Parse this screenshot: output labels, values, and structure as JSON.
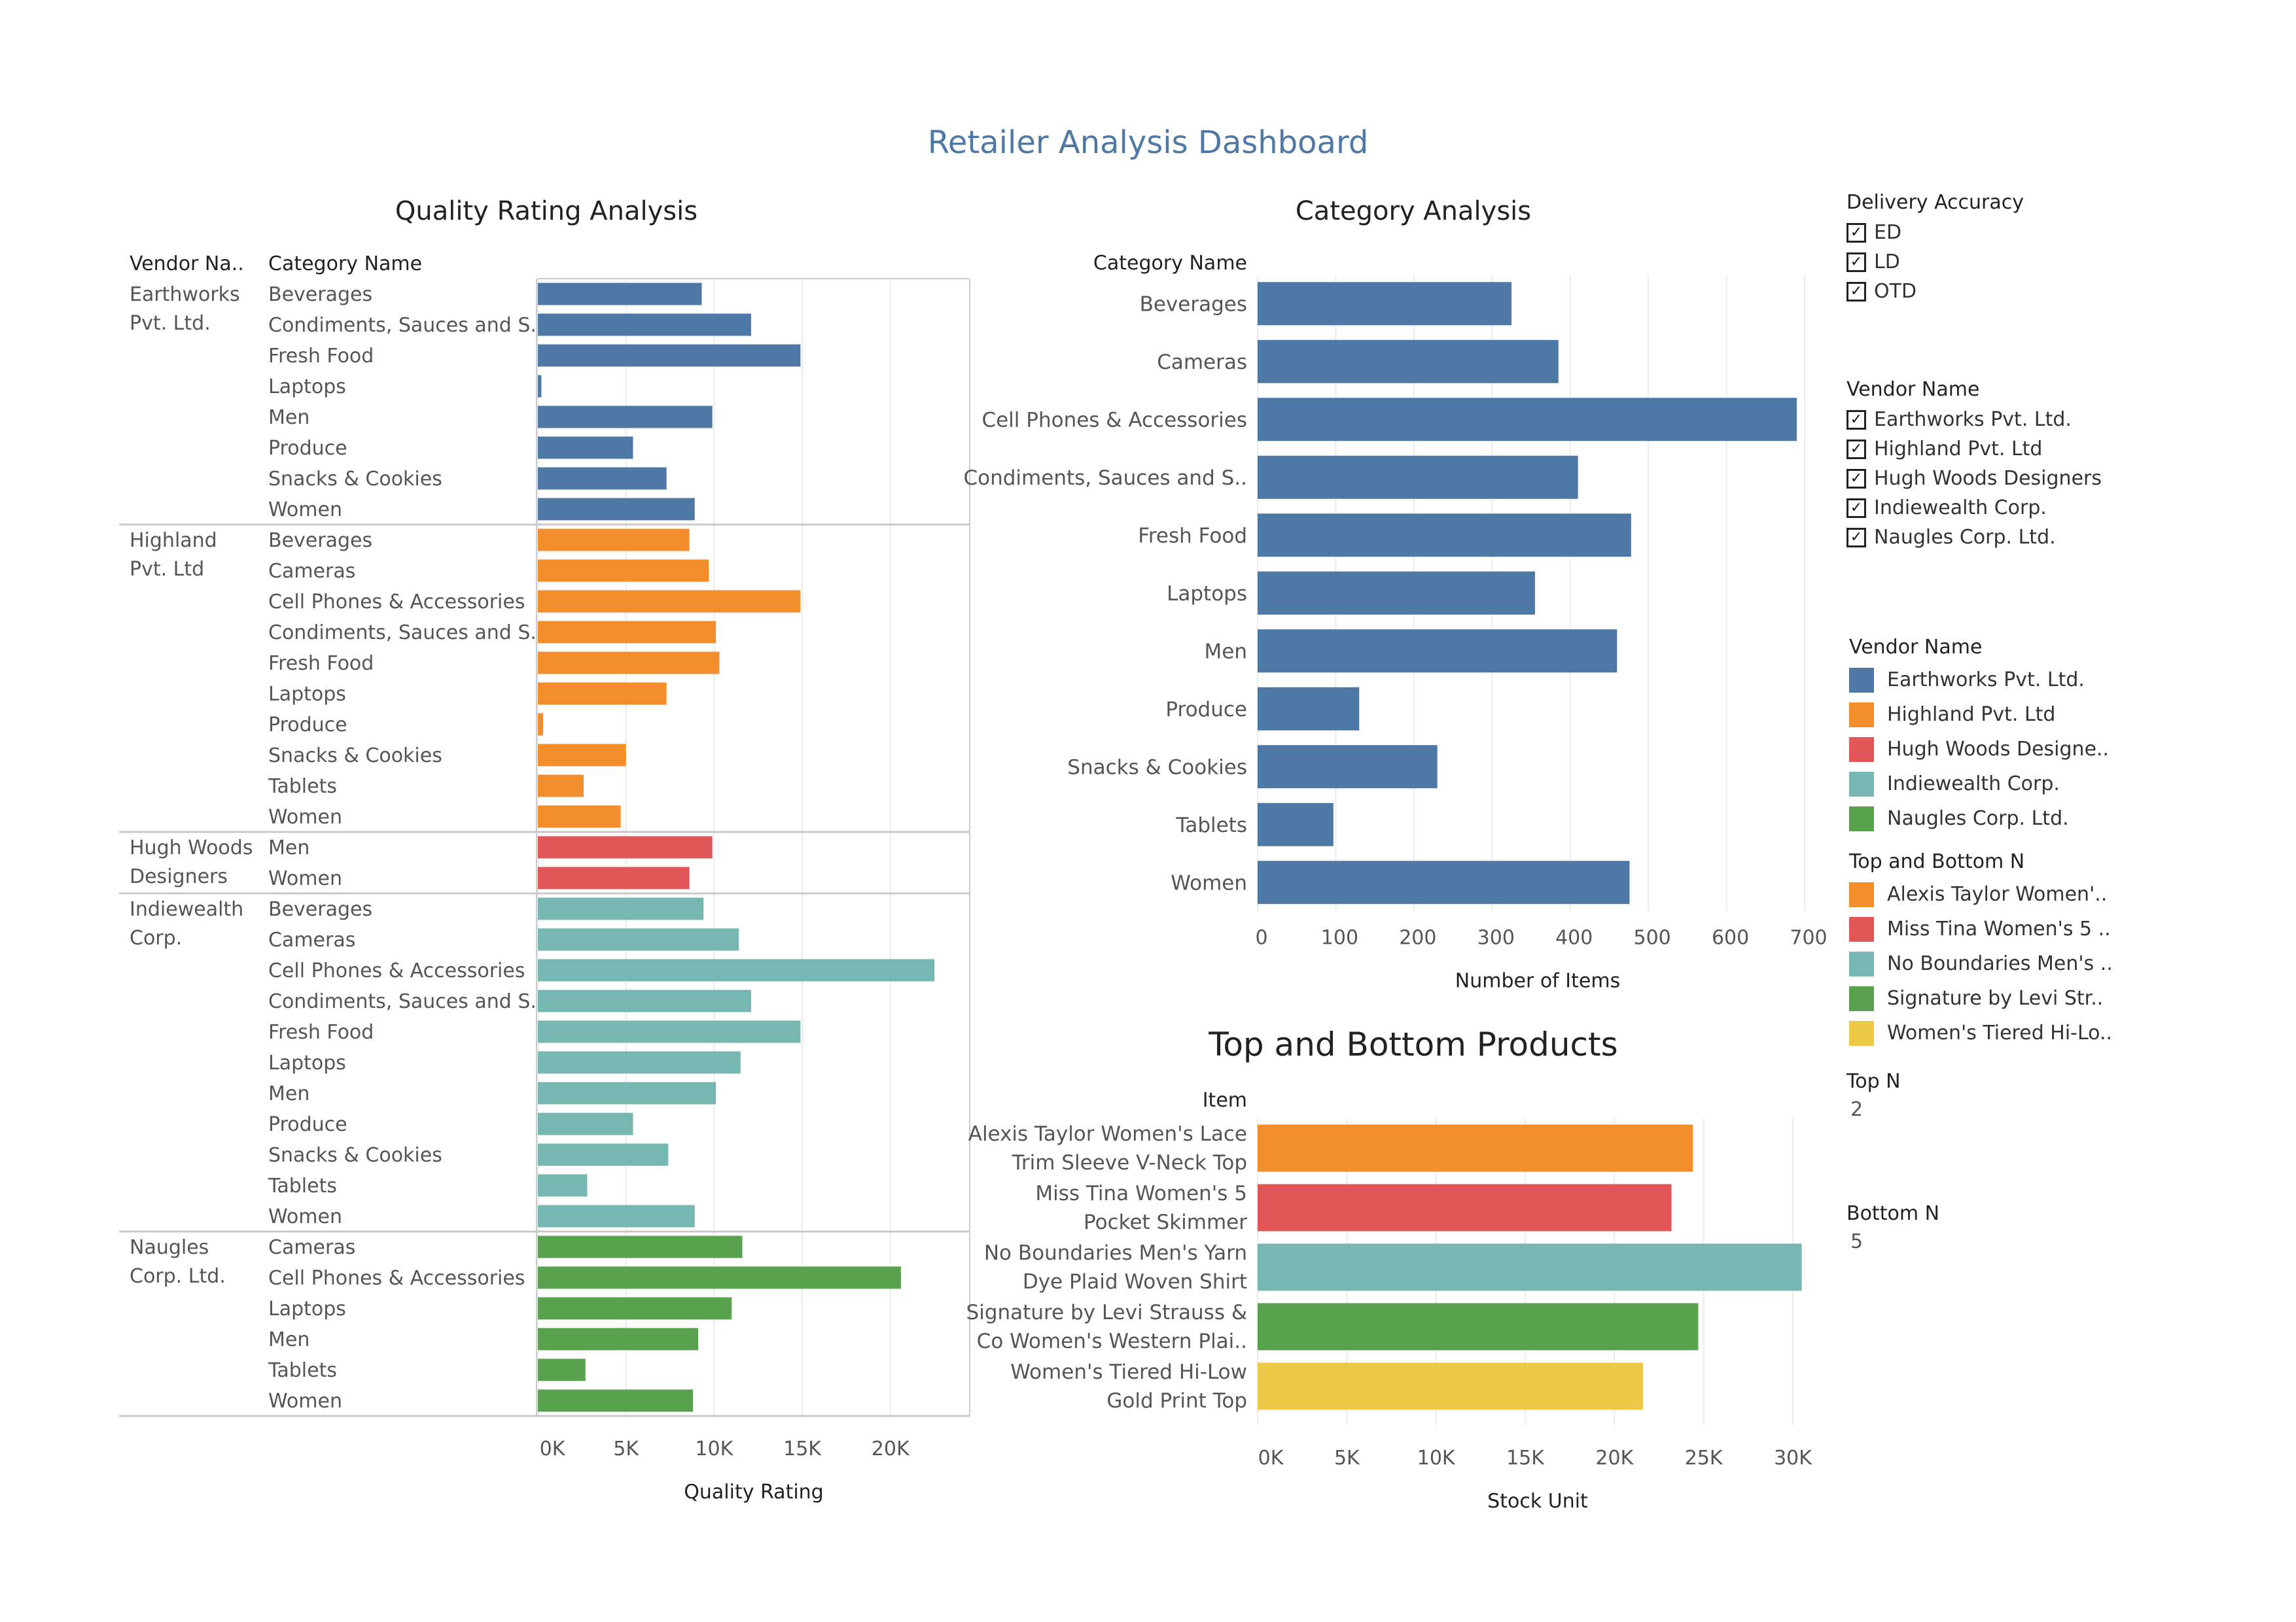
{
  "title": "Retailer Analysis Dashboard",
  "colors": {
    "Earthworks Pvt. Ltd.": "#4e79a7",
    "Highland Pvt. Ltd": "#f28e2b",
    "Hugh Woods Designers": "#e15759",
    "Indiewealth Corp.": "#76b7b2",
    "Naugles Corp. Ltd.": "#59a14f",
    "Women's Tiered": "#edc948"
  },
  "quality": {
    "title": "Quality Rating Analysis"
  },
  "category": {
    "title": "Category Analysis"
  },
  "topbottom": {
    "title": "Top and Bottom Products"
  },
  "filters": {
    "delivery": {
      "header": "Delivery Accuracy",
      "items": [
        "ED",
        "LD",
        "OTD"
      ]
    },
    "vendor": {
      "header": "Vendor Name",
      "items": [
        "Earthworks Pvt. Ltd.",
        "Highland Pvt. Ltd",
        "Hugh Woods Designers",
        "Indiewealth Corp.",
        "Naugles Corp. Ltd."
      ]
    }
  },
  "legends": {
    "vendor": {
      "header": "Vendor Name",
      "items": [
        {
          "label": "Earthworks Pvt. Ltd.",
          "color": "#4e79a7"
        },
        {
          "label": "Highland Pvt. Ltd",
          "color": "#f28e2b"
        },
        {
          "label": "Hugh Woods Designe..",
          "color": "#e15759"
        },
        {
          "label": "Indiewealth Corp.",
          "color": "#76b7b2"
        },
        {
          "label": "Naugles Corp. Ltd.",
          "color": "#59a14f"
        }
      ]
    },
    "topbottom": {
      "header": "Top and Bottom N",
      "items": [
        {
          "label": "Alexis Taylor Women'..",
          "color": "#f28e2b"
        },
        {
          "label": "Miss Tina Women's 5 ..",
          "color": "#e15759"
        },
        {
          "label": "No Boundaries Men's ..",
          "color": "#76b7b2"
        },
        {
          "label": "Signature by Levi Str..",
          "color": "#59a14f"
        },
        {
          "label": "Women's Tiered Hi-Lo..",
          "color": "#edc948"
        }
      ]
    }
  },
  "params": {
    "top": {
      "header": "Top N",
      "value": "2"
    },
    "bottom": {
      "header": "Bottom N",
      "value": "5"
    }
  },
  "chart_data": [
    {
      "type": "bar",
      "title": "Quality Rating Analysis",
      "row_headers": [
        "Vendor Na..",
        "Category Name"
      ],
      "xlabel": "Quality Rating",
      "xlim": [
        0,
        23500
      ],
      "ticks": [
        0,
        5000,
        10000,
        15000,
        20000
      ],
      "tick_labels": [
        "0K",
        "5K",
        "10K",
        "15K",
        "20K"
      ],
      "groups": [
        {
          "vendor": "Earthworks Pvt. Ltd.",
          "label_lines": [
            "Earthworks",
            "Pvt. Ltd."
          ],
          "color": "#4e79a7",
          "categories": [
            "Beverages",
            "Condiments, Sauces and S..",
            "Fresh Food",
            "Laptops",
            "Men",
            "Produce",
            "Snacks & Cookies",
            "Women"
          ],
          "values": [
            9300,
            12100,
            14900,
            200,
            9900,
            5400,
            7300,
            8900
          ]
        },
        {
          "vendor": "Highland Pvt. Ltd",
          "label_lines": [
            "Highland",
            "Pvt. Ltd"
          ],
          "color": "#f28e2b",
          "categories": [
            "Beverages",
            "Cameras",
            "Cell Phones & Accessories",
            "Condiments, Sauces and S..",
            "Fresh Food",
            "Laptops",
            "Produce",
            "Snacks & Cookies",
            "Tablets",
            "Women"
          ],
          "values": [
            8600,
            9700,
            14900,
            10100,
            10300,
            7300,
            300,
            5000,
            2600,
            4700
          ]
        },
        {
          "vendor": "Hugh Woods Designers",
          "label_lines": [
            "Hugh Woods",
            "Designers"
          ],
          "color": "#e15759",
          "categories": [
            "Men",
            "Women"
          ],
          "values": [
            9900,
            8600
          ]
        },
        {
          "vendor": "Indiewealth Corp.",
          "label_lines": [
            "Indiewealth",
            "Corp."
          ],
          "color": "#76b7b2",
          "categories": [
            "Beverages",
            "Cameras",
            "Cell Phones & Accessories",
            "Condiments, Sauces and S..",
            "Fresh Food",
            "Laptops",
            "Men",
            "Produce",
            "Snacks & Cookies",
            "Tablets",
            "Women"
          ],
          "values": [
            9400,
            11400,
            22500,
            12100,
            14900,
            11500,
            10100,
            5400,
            7400,
            2800,
            8900
          ]
        },
        {
          "vendor": "Naugles Corp. Ltd.",
          "label_lines": [
            "Naugles",
            "Corp. Ltd."
          ],
          "color": "#59a14f",
          "categories": [
            "Cameras",
            "Cell Phones & Accessories",
            "Laptops",
            "Men",
            "Tablets",
            "Women"
          ],
          "values": [
            11600,
            20600,
            11000,
            9100,
            2700,
            8800
          ]
        }
      ]
    },
    {
      "type": "bar",
      "title": "Category Analysis",
      "row_header": "Category Name",
      "xlabel": "Number of Items",
      "xlim": [
        0,
        720
      ],
      "ticks": [
        0,
        100,
        200,
        300,
        400,
        500,
        600,
        700
      ],
      "tick_labels": [
        "0",
        "100",
        "200",
        "300",
        "400",
        "500",
        "600",
        "700"
      ],
      "color": "#4e79a7",
      "categories": [
        "Beverages",
        "Cameras",
        "Cell Phones & Accessories",
        "Condiments, Sauces and S..",
        "Fresh Food",
        "Laptops",
        "Men",
        "Produce",
        "Snacks & Cookies",
        "Tablets",
        "Women"
      ],
      "values": [
        325,
        385,
        690,
        410,
        478,
        355,
        460,
        130,
        230,
        97,
        476
      ]
    },
    {
      "type": "bar",
      "title": "Top and Bottom Products",
      "row_header": "Item",
      "xlabel": "Stock Unit",
      "xlim": [
        0,
        31500
      ],
      "ticks": [
        0,
        5000,
        10000,
        15000,
        20000,
        25000,
        30000
      ],
      "tick_labels": [
        "0K",
        "5K",
        "10K",
        "15K",
        "20K",
        "25K",
        "30K"
      ],
      "items": [
        {
          "lines": [
            "Alexis Taylor Women's Lace",
            "Trim Sleeve V-Neck Top"
          ],
          "value": 24400,
          "color": "#f28e2b"
        },
        {
          "lines": [
            "Miss Tina Women's 5",
            "Pocket Skimmer"
          ],
          "value": 23200,
          "color": "#e15759"
        },
        {
          "lines": [
            "No Boundaries Men's Yarn",
            "Dye Plaid Woven Shirt"
          ],
          "value": 30500,
          "color": "#76b7b2"
        },
        {
          "lines": [
            "Signature by Levi Strauss &",
            "Co Women's Western Plai.."
          ],
          "value": 24700,
          "color": "#59a14f"
        },
        {
          "lines": [
            "Women's Tiered Hi-Low",
            "Gold Print Top"
          ],
          "value": 21600,
          "color": "#edc948"
        }
      ]
    }
  ]
}
